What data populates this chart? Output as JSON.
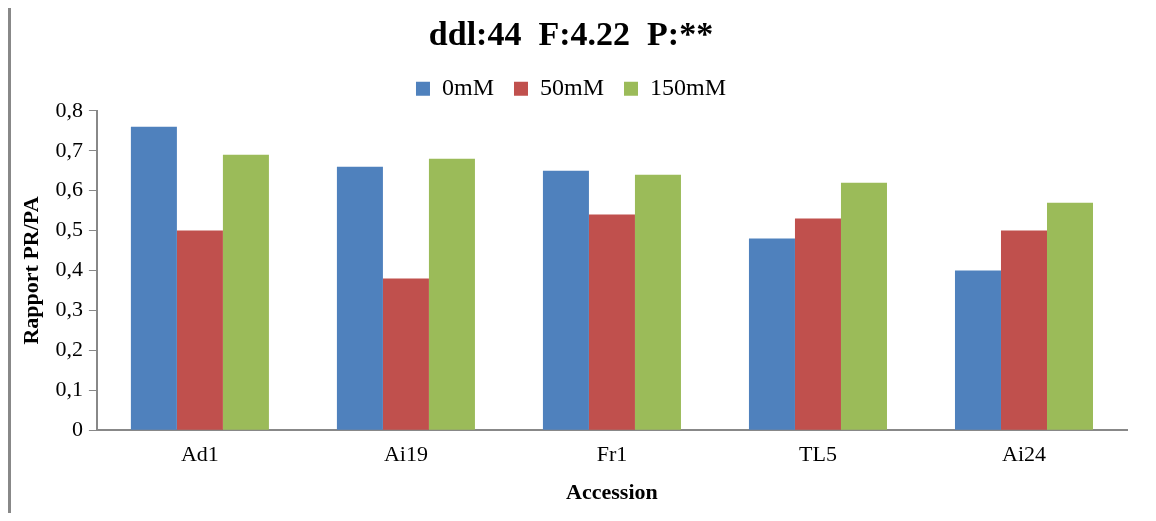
{
  "chart_data": {
    "type": "bar",
    "title": "ddl:44  F:4.22  P:**",
    "xlabel": "Accession",
    "ylabel": "Rapport PR/PA",
    "categories": [
      "Ad1",
      "Ai19",
      "Fr1",
      "TL5",
      "Ai24"
    ],
    "series": [
      {
        "name": "0mM",
        "color": "#4f81bd",
        "values": [
          0.76,
          0.66,
          0.65,
          0.48,
          0.4
        ]
      },
      {
        "name": "50mM",
        "color": "#c0504d",
        "values": [
          0.5,
          0.38,
          0.54,
          0.53,
          0.5
        ]
      },
      {
        "name": "150mM",
        "color": "#9bbb59",
        "values": [
          0.69,
          0.68,
          0.64,
          0.62,
          0.57
        ]
      }
    ],
    "ylim": [
      0,
      0.8
    ],
    "yticks": [
      0,
      {
        "value": 0.1,
        "label": "0,1"
      },
      {
        "value": 0.2,
        "label": "0,2"
      },
      {
        "value": 0.3,
        "label": "0,3"
      },
      {
        "value": 0.4,
        "label": "0,4"
      },
      {
        "value": 0.5,
        "label": "0,5"
      },
      {
        "value": 0.6,
        "label": "0,6"
      },
      {
        "value": 0.7,
        "label": "0,7"
      },
      {
        "value": 0.8,
        "label": "0,8"
      }
    ],
    "grid": false,
    "legend": "top"
  }
}
